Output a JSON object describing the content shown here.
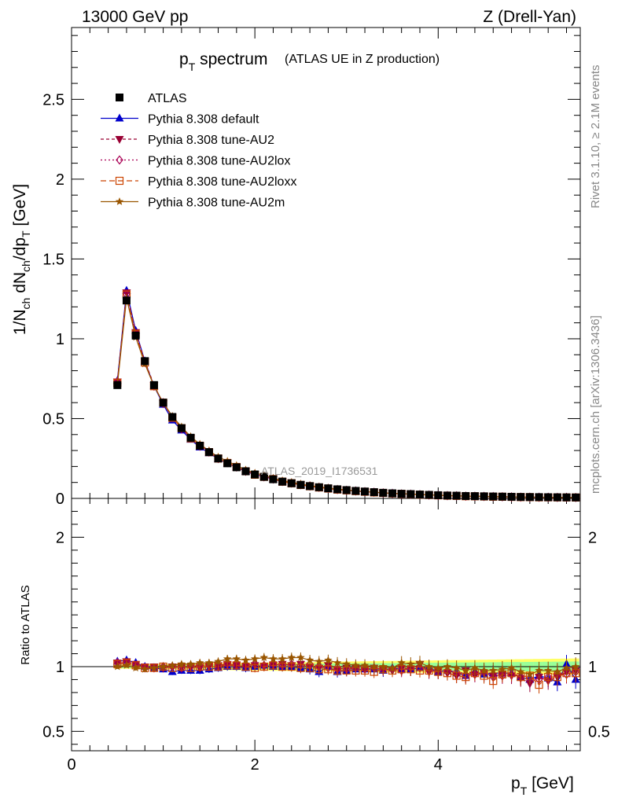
{
  "header": {
    "left": "13000 GeV pp",
    "right": "Z (Drell-Yan)"
  },
  "title": {
    "main": "p",
    "main_sub": "T",
    "main_rest": " spectrum",
    "sub": "(ATLAS UE in Z production)"
  },
  "side_labels": {
    "rivet": "Rivet 3.1.10, ≥ 2.1M events",
    "mcplots": "mcplots.cern.ch [arXiv:1306.3436]"
  },
  "watermark": "ATLAS_2019_I1736531",
  "axes": {
    "ylabel_main": "1/N",
    "ylabel_ratio": "Ratio to ATLAS",
    "xlabel": "p",
    "xlabel_sub": "T",
    "xlabel_rest": " [GeV]"
  },
  "colors": {
    "data": "#000000",
    "default": "#0000cc",
    "AU2": "#990033",
    "AU2lox": "#aa0055",
    "AU2loxx": "#cc4400",
    "AU2m": "#995500",
    "band_yellow": "#ffff66",
    "band_green": "#99ff99"
  },
  "chart_data": {
    "type": "line",
    "x": [
      0.5,
      0.6,
      0.7,
      0.8,
      0.9,
      1.0,
      1.1,
      1.2,
      1.3,
      1.4,
      1.5,
      1.6,
      1.7,
      1.8,
      1.9,
      2.0,
      2.1,
      2.2,
      2.3,
      2.4,
      2.5,
      2.6,
      2.7,
      2.8,
      2.9,
      3.0,
      3.1,
      3.2,
      3.3,
      3.4,
      3.5,
      3.6,
      3.7,
      3.8,
      3.9,
      4.0,
      4.1,
      4.2,
      4.3,
      4.4,
      4.5,
      4.6,
      4.7,
      4.8,
      4.9,
      5.0,
      5.1,
      5.2,
      5.3,
      5.4,
      5.5
    ],
    "xlim": [
      0,
      5.55
    ],
    "ylim_main": [
      0,
      2.95
    ],
    "ylim_ratio": [
      0.35,
      2.3
    ],
    "x_ticks": [
      0,
      2,
      4
    ],
    "y_ticks_main": [
      0,
      0.5,
      1,
      1.5,
      2,
      2.5
    ],
    "y_ticks_ratio": [
      0.5,
      1,
      2
    ],
    "data_values": [
      0.71,
      1.24,
      1.02,
      0.86,
      0.71,
      0.6,
      0.51,
      0.44,
      0.38,
      0.33,
      0.29,
      0.25,
      0.22,
      0.195,
      0.17,
      0.15,
      0.135,
      0.12,
      0.105,
      0.095,
      0.085,
      0.077,
      0.07,
      0.063,
      0.057,
      0.052,
      0.047,
      0.043,
      0.039,
      0.035,
      0.032,
      0.029,
      0.027,
      0.024,
      0.022,
      0.02,
      0.018,
      0.017,
      0.015,
      0.014,
      0.013,
      0.012,
      0.011,
      0.01,
      0.009,
      0.0085,
      0.008,
      0.0075,
      0.007,
      0.0065,
      0.006
    ],
    "series": [
      {
        "name": "ATLAS",
        "key": "data",
        "marker": "square",
        "ratio": [
          1,
          1,
          1,
          1,
          1,
          1,
          1,
          1,
          1,
          1,
          1,
          1,
          1,
          1,
          1,
          1,
          1,
          1,
          1,
          1,
          1,
          1,
          1,
          1,
          1,
          1,
          1,
          1,
          1,
          1,
          1,
          1,
          1,
          1,
          1,
          1,
          1,
          1,
          1,
          1,
          1,
          1,
          1,
          1,
          1,
          1,
          1,
          1,
          1,
          1,
          1
        ]
      },
      {
        "name": "Pythia 8.308 default",
        "key": "default",
        "marker": "triangle-up",
        "dash": "",
        "ratio": [
          1.04,
          1.05,
          1.03,
          1.0,
          0.99,
          0.98,
          0.96,
          0.97,
          0.97,
          0.97,
          0.98,
          0.99,
          1.0,
          1.0,
          0.99,
          1.0,
          1.01,
          1.0,
          1.0,
          1.0,
          0.99,
          0.98,
          0.96,
          1.0,
          0.96,
          0.97,
          0.98,
          0.98,
          0.98,
          0.97,
          0.99,
          0.98,
          0.98,
          0.99,
          0.99,
          0.96,
          0.97,
          0.95,
          0.93,
          0.96,
          0.94,
          0.95,
          0.95,
          0.95,
          0.92,
          0.9,
          0.93,
          0.91,
          0.88,
          1.02,
          0.9
        ]
      },
      {
        "name": "Pythia 8.308 tune-AU2",
        "key": "AU2",
        "marker": "triangle-down",
        "dash": "4,3",
        "ratio": [
          1.03,
          1.04,
          1.02,
          1.0,
          1.0,
          0.99,
          1.0,
          1.0,
          1.0,
          0.99,
          1.0,
          1.01,
          1.02,
          1.01,
          1.0,
          1.01,
          1.0,
          1.01,
          1.02,
          1.01,
          1.02,
          1.0,
          0.99,
          1.01,
          0.98,
          0.99,
          0.99,
          0.98,
          0.99,
          0.98,
          0.97,
          0.99,
          0.98,
          1.02,
          0.96,
          0.97,
          0.95,
          0.93,
          0.97,
          0.94,
          0.95,
          0.93,
          0.94,
          0.93,
          0.91,
          0.87,
          0.92,
          0.89,
          0.92,
          0.96,
          0.97
        ]
      },
      {
        "name": "Pythia 8.308 tune-AU2lox",
        "key": "AU2lox",
        "marker": "diamond-open",
        "dash": "2,3",
        "ratio": [
          1.03,
          1.03,
          1.01,
          0.99,
          0.99,
          1.0,
          1.0,
          0.99,
          1.0,
          1.01,
          1.01,
          1.0,
          1.02,
          1.01,
          1.01,
          1.02,
          1.01,
          1.02,
          1.01,
          1.02,
          1.01,
          1.02,
          1.0,
          0.99,
          0.98,
          0.98,
          0.99,
          0.98,
          0.99,
          0.98,
          0.98,
          0.97,
          0.99,
          0.99,
          0.97,
          0.96,
          0.97,
          0.96,
          0.93,
          0.94,
          0.96,
          0.92,
          0.93,
          0.94,
          0.92,
          0.91,
          0.9,
          0.92,
          0.95,
          0.94,
          0.96
        ]
      },
      {
        "name": "Pythia 8.308 tune-AU2loxx",
        "key": "AU2loxx",
        "marker": "square-open",
        "dash": "7,4",
        "ratio": [
          1.02,
          1.03,
          1.01,
          0.99,
          0.99,
          1.0,
          0.99,
          1.0,
          0.99,
          1.0,
          1.0,
          1.0,
          1.01,
          1.01,
          1.0,
          0.99,
          1.0,
          1.01,
          1.0,
          1.0,
          0.99,
          0.99,
          0.98,
          0.98,
          0.97,
          0.97,
          0.97,
          0.97,
          0.96,
          0.98,
          0.97,
          0.98,
          0.98,
          0.97,
          0.97,
          0.96,
          0.95,
          0.93,
          0.92,
          0.95,
          0.93,
          0.89,
          0.94,
          0.95,
          0.92,
          0.93,
          0.86,
          0.92,
          0.92,
          0.95,
          0.95
        ]
      },
      {
        "name": "Pythia 8.308 tune-AU2m",
        "key": "AU2m",
        "marker": "star",
        "dash": "",
        "ratio": [
          1.0,
          1.01,
          0.99,
          0.98,
          0.99,
          1.0,
          1.01,
          1.02,
          1.02,
          1.03,
          1.03,
          1.04,
          1.06,
          1.06,
          1.05,
          1.06,
          1.07,
          1.06,
          1.06,
          1.07,
          1.07,
          1.05,
          1.04,
          1.05,
          1.03,
          1.02,
          1.01,
          1.01,
          1.0,
          1.0,
          0.99,
          1.03,
          1.02,
          1.03,
          1.0,
          0.99,
          1.0,
          0.99,
          0.97,
          0.99,
          0.97,
          0.97,
          0.98,
          0.99,
          0.96,
          0.94,
          0.97,
          0.97,
          0.96,
          0.99,
          1.0
        ]
      }
    ]
  }
}
